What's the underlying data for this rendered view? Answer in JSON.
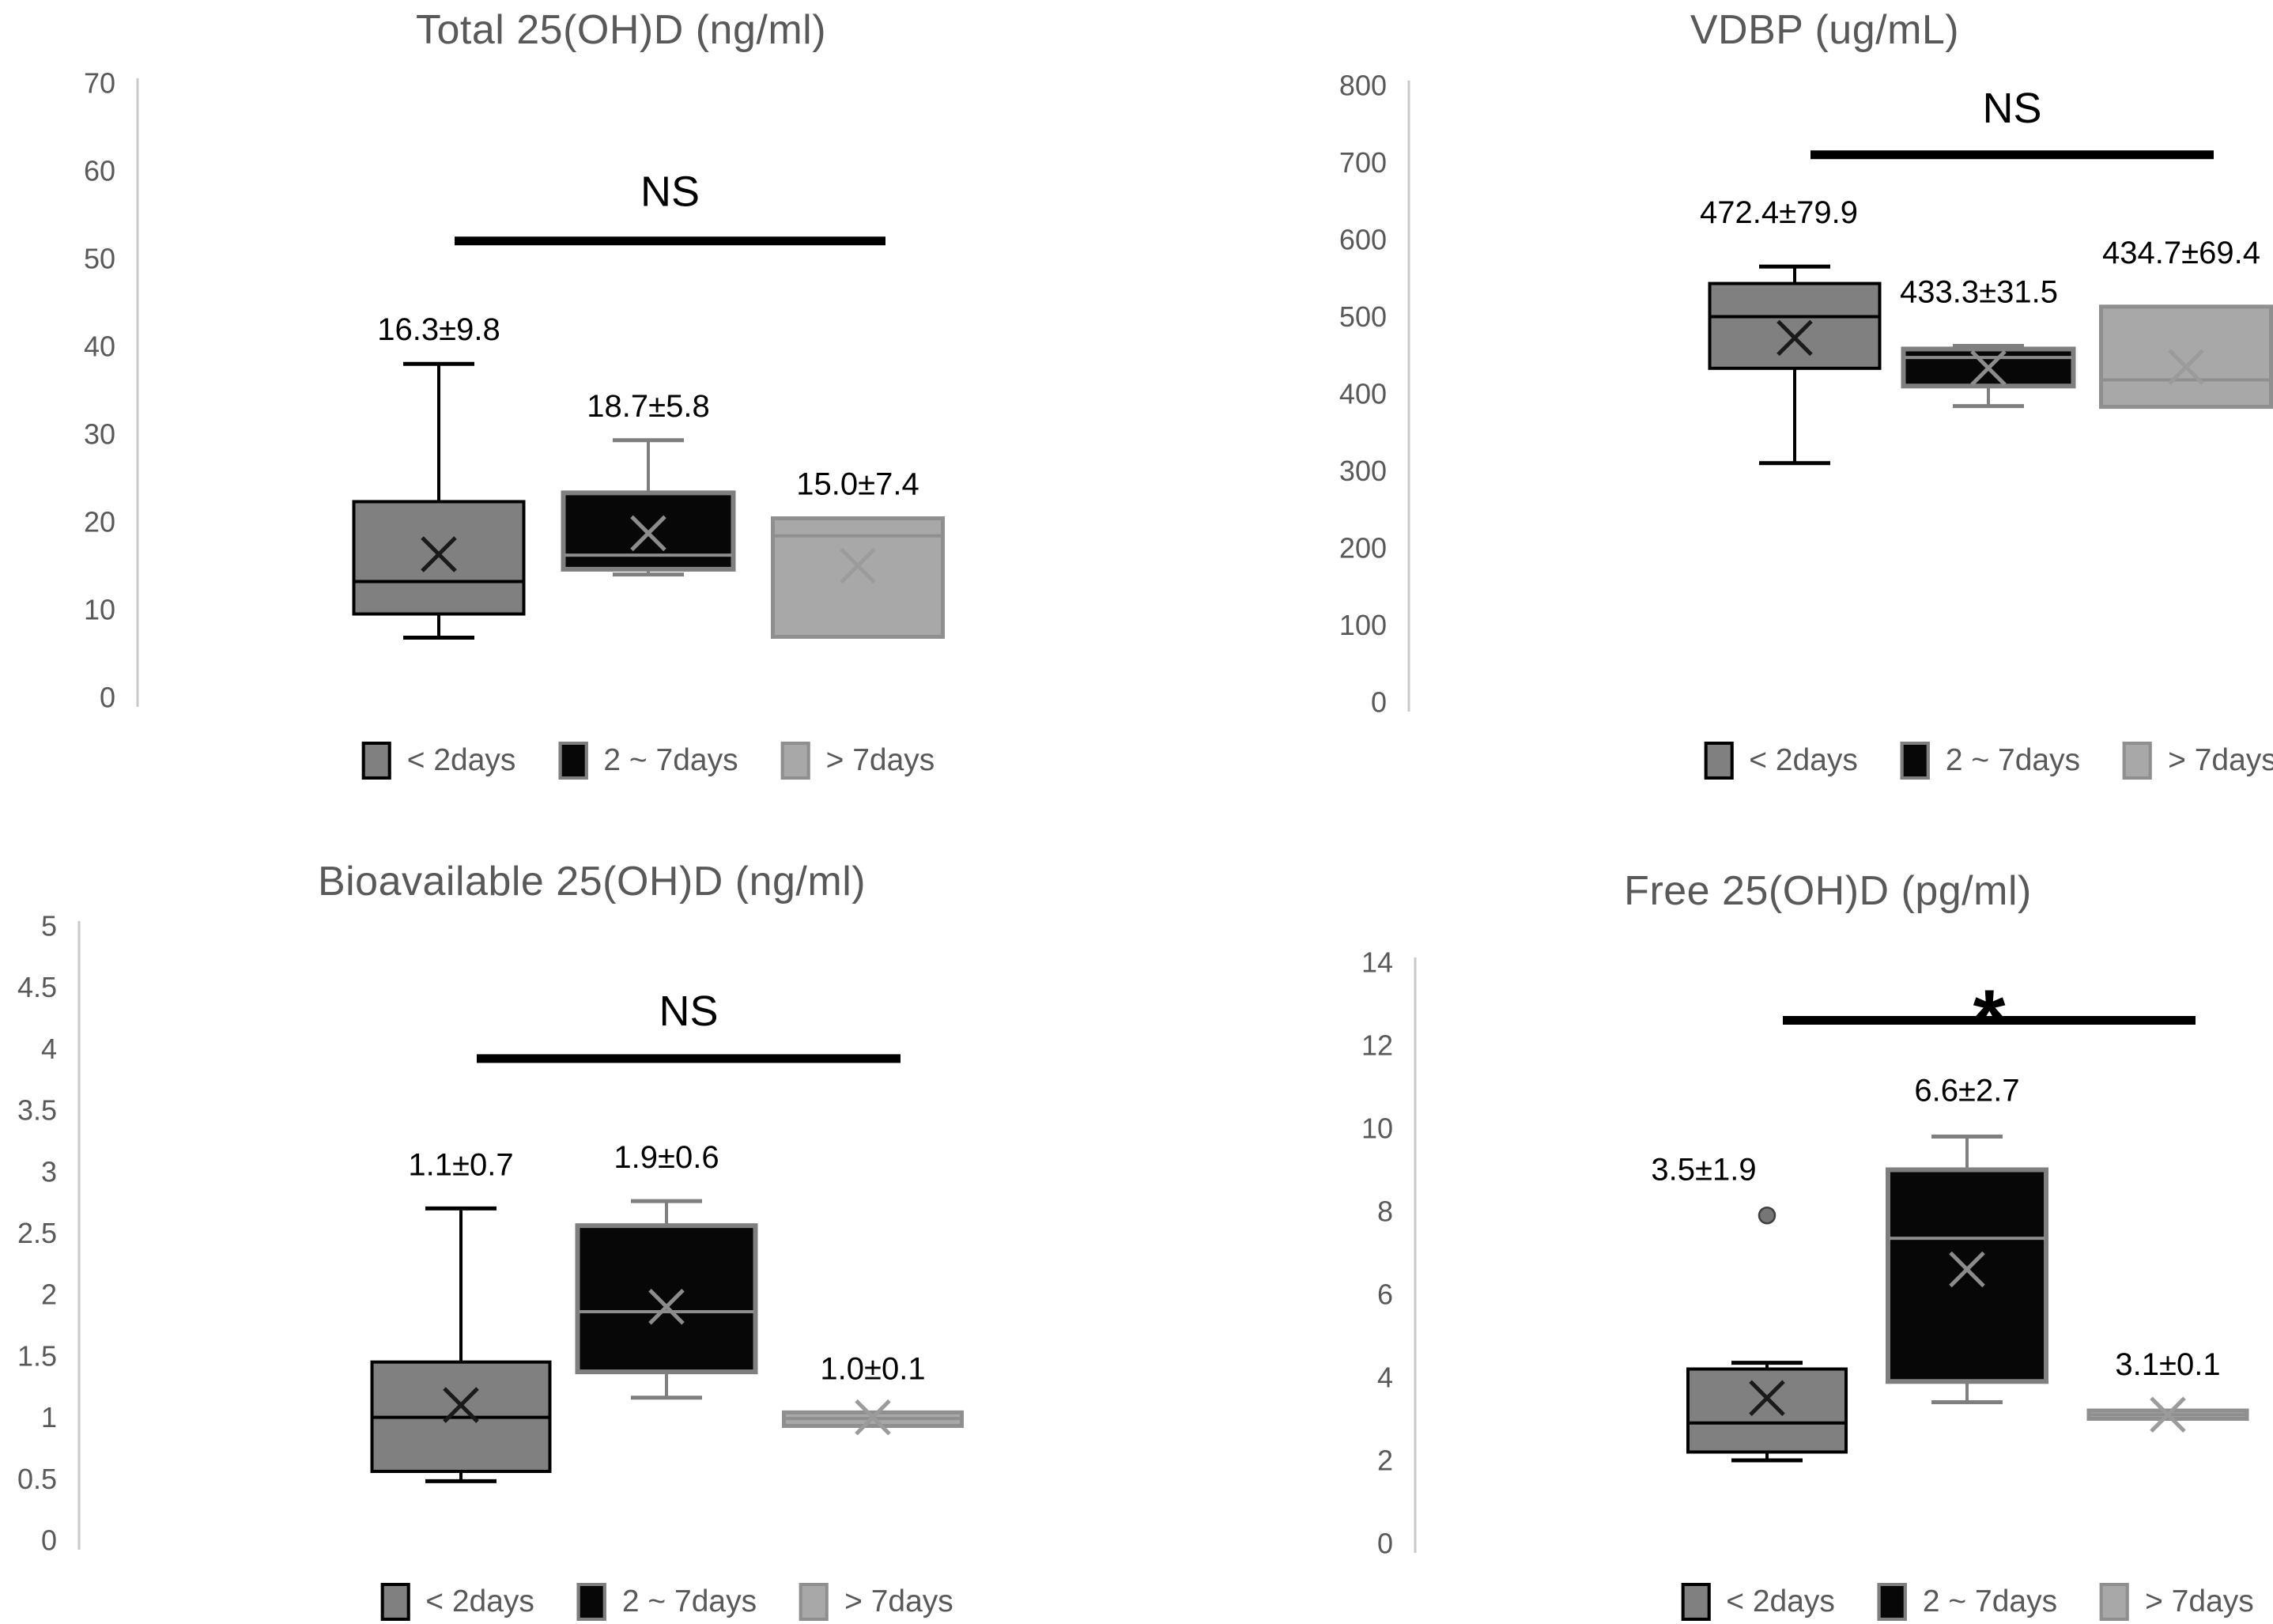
{
  "page": {
    "background": "#ffffff"
  },
  "colors": {
    "axis": "#c9c9c9",
    "tick_text": "#595959",
    "title_text": "#595959",
    "annotation": "#000000",
    "mean_label_text": "#000000",
    "outlier_fill": "#767676",
    "outlier_stroke": "#3f3f3f",
    "groups": [
      {
        "name": "< 2days",
        "fill": "#808080",
        "border": "#000000",
        "median": "#000000",
        "x": "#1a1a1a",
        "whisker": "#000000",
        "sw": 4
      },
      {
        "name": "2 ~ 7days",
        "fill": "#070707",
        "border": "#7f7f7f",
        "median": "#8c8c8c",
        "x": "#8c8c8c",
        "whisker": "#7f7f7f",
        "sw": 6
      },
      {
        "name": "> 7days",
        "fill": "#a8a8a8",
        "border": "#8f8f8f",
        "median": "#8f8f8f",
        "x": "#9b9b9b",
        "whisker": "#8f8f8f",
        "sw": 5
      }
    ]
  },
  "legend": {
    "items": [
      {
        "label": "< 2days"
      },
      {
        "label": "2 ~ 7days"
      },
      {
        "label": "> 7days"
      }
    ]
  },
  "chart_data": [
    {
      "type": "box",
      "title": "Total 25(OH)D (ng/ml)",
      "ylim": [
        0,
        70
      ],
      "ytick_step": 10,
      "yticks": [
        "0",
        "10",
        "20",
        "30",
        "40",
        "50",
        "60",
        "70"
      ],
      "grid": false,
      "legend_position": "bottom",
      "significance": {
        "text": "NS",
        "line_value": 52,
        "text_value": 56,
        "from_group": "< 2days",
        "to_group": "> 7days"
      },
      "categories": [
        "< 2days",
        "2 ~ 7days",
        "> 7days"
      ],
      "boxes": [
        {
          "group": "< 2days",
          "label": "16.3±9.8",
          "mean": 16.3,
          "median": 13.2,
          "q1": 9.5,
          "q3": 22.3,
          "whisker_low": 6.8,
          "whisker_high": 38.0,
          "outliers": []
        },
        {
          "group": "2 ~ 7days",
          "label": "18.7±5.8",
          "mean": 18.7,
          "median": 16.2,
          "q1": 14.6,
          "q3": 23.3,
          "whisker_low": 14.0,
          "whisker_high": 29.3,
          "outliers": []
        },
        {
          "group": "> 7days",
          "label": "15.0±7.4",
          "mean": 15.0,
          "median": 18.4,
          "q1": 6.9,
          "q3": 20.4,
          "whisker_low": null,
          "whisker_high": null,
          "outliers": []
        }
      ]
    },
    {
      "type": "box",
      "title": "VDBP (ug/mL)",
      "ylim": [
        0,
        800
      ],
      "ytick_step": 100,
      "yticks": [
        "0",
        "100",
        "200",
        "300",
        "400",
        "500",
        "600",
        "700",
        "800"
      ],
      "grid": false,
      "legend_position": "bottom",
      "significance": {
        "text": "NS",
        "line_value": 710,
        "text_value": 752,
        "from_group": "< 2days",
        "to_group": "> 7days"
      },
      "categories": [
        "< 2days",
        "2 ~ 7days",
        "> 7days"
      ],
      "boxes": [
        {
          "group": "< 2days",
          "label": "472.4±79.9",
          "mean": 472.4,
          "median": 500,
          "q1": 433,
          "q3": 543,
          "whisker_low": 310,
          "whisker_high": 565,
          "outliers": []
        },
        {
          "group": "2 ~ 7days",
          "label": "433.3±31.5",
          "mean": 433.3,
          "median": 447,
          "q1": 410,
          "q3": 458,
          "whisker_low": 384,
          "whisker_high": 462,
          "outliers": []
        },
        {
          "group": "> 7days",
          "label": "434.7±69.4",
          "mean": 434.7,
          "median": 418,
          "q1": 383,
          "q3": 513,
          "whisker_low": null,
          "whisker_high": null,
          "outliers": []
        }
      ]
    },
    {
      "type": "box",
      "title": "Bioavailable 25(OH)D (ng/ml)",
      "ylim": [
        0,
        5
      ],
      "ytick_step": 0.5,
      "yticks": [
        "0",
        "0.5",
        "1",
        "1.5",
        "2",
        "2.5",
        "3",
        "3.5",
        "4",
        "4.5",
        "5"
      ],
      "grid": false,
      "legend_position": "bottom",
      "significance": {
        "text": "NS",
        "line_value": 3.92,
        "text_value": 4.19,
        "from_group": "< 2days",
        "to_group": "> 7days"
      },
      "categories": [
        "< 2days",
        "2 ~ 7days",
        "> 7days"
      ],
      "boxes": [
        {
          "group": "< 2days",
          "label": "1.1±0.7",
          "mean": 1.1,
          "median": 1.0,
          "q1": 0.56,
          "q3": 1.45,
          "whisker_low": 0.48,
          "whisker_high": 2.7,
          "outliers": []
        },
        {
          "group": "2 ~ 7days",
          "label": "1.9±0.6",
          "mean": 1.9,
          "median": 1.86,
          "q1": 1.37,
          "q3": 2.56,
          "whisker_low": 1.16,
          "whisker_high": 2.76,
          "outliers": []
        },
        {
          "group": "> 7days",
          "label": "1.0±0.1",
          "mean": 1.0,
          "median": 0.99,
          "q1": 0.93,
          "q3": 1.04,
          "whisker_low": null,
          "whisker_high": null,
          "outliers": []
        }
      ]
    },
    {
      "type": "box",
      "title": "Free 25(OH)D (pg/ml)",
      "ylim": [
        0,
        14
      ],
      "ytick_step": 2,
      "yticks": [
        "0",
        "2",
        "4",
        "6",
        "8",
        "10",
        "12",
        "14"
      ],
      "grid": false,
      "legend_position": "bottom",
      "significance": {
        "text": "*",
        "line_value": 12.6,
        "text_value": 11.95,
        "from_group": "< 2days",
        "to_group": "> 7days"
      },
      "categories": [
        "< 2days",
        "2 ~ 7days",
        "> 7days"
      ],
      "boxes": [
        {
          "group": "< 2days",
          "label": "3.5±1.9",
          "mean": 3.5,
          "median": 2.9,
          "q1": 2.2,
          "q3": 4.2,
          "whisker_low": 2.0,
          "whisker_high": 4.35,
          "outliers": [
            7.9
          ]
        },
        {
          "group": "2 ~ 7days",
          "label": "6.6±2.7",
          "mean": 6.6,
          "median": 7.35,
          "q1": 3.9,
          "q3": 9.0,
          "whisker_low": 3.4,
          "whisker_high": 9.8,
          "outliers": []
        },
        {
          "group": "> 7days",
          "label": "3.1±0.1",
          "mean": 3.1,
          "median": 3.1,
          "q1": 3.0,
          "q3": 3.2,
          "whisker_low": null,
          "whisker_high": null,
          "outliers": []
        }
      ]
    }
  ]
}
